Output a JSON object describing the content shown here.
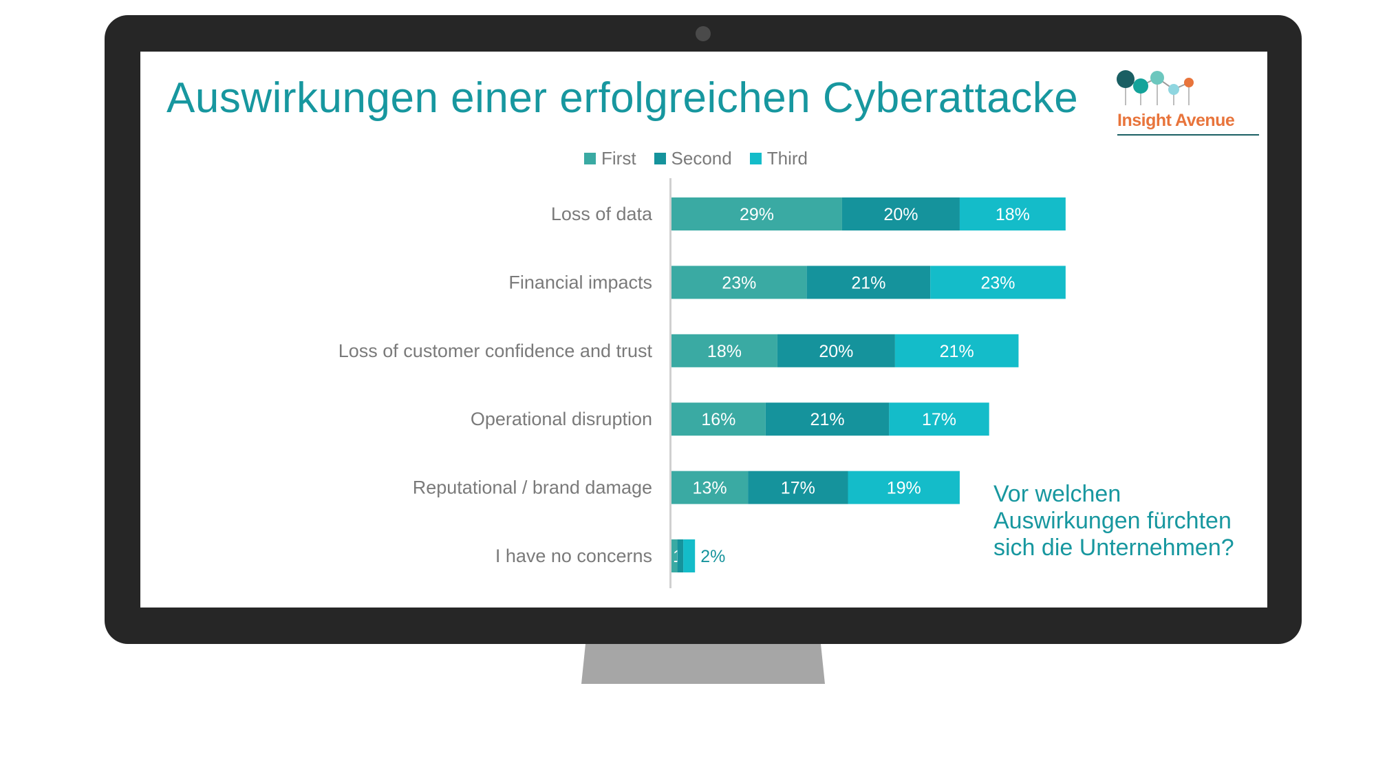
{
  "slide": {
    "title": "Auswirkungen einer erfolgreichen Cyberattacke",
    "question": "Vor welchen Auswirkungen fürchten sich die Unternehmen?",
    "logo_text": "Insight Avenue"
  },
  "colors": {
    "first": "#3aaaa3",
    "second": "#15939c",
    "third": "#14bcc9",
    "title": "#17979f",
    "label_text": "#7a7a7a",
    "logo_orange": "#e8743b",
    "logo_dark": "#1a5f63"
  },
  "chart_data": {
    "type": "bar",
    "orientation": "horizontal",
    "stacked": true,
    "legend_position": "top",
    "grid": false,
    "categories": [
      "Loss of data",
      "Financial impacts",
      "Loss of customer confidence and trust",
      "Operational disruption",
      "Reputational / brand damage",
      "I have no concerns"
    ],
    "series": [
      {
        "name": "First",
        "values": [
          29,
          23,
          18,
          16,
          13,
          1
        ]
      },
      {
        "name": "Second",
        "values": [
          20,
          21,
          20,
          21,
          17,
          1
        ]
      },
      {
        "name": "Third",
        "values": [
          18,
          23,
          21,
          17,
          19,
          2
        ]
      }
    ],
    "data_labels": [
      [
        "29%",
        "20%",
        "18%"
      ],
      [
        "23%",
        "21%",
        "23%"
      ],
      [
        "18%",
        "20%",
        "21%"
      ],
      [
        "16%",
        "21%",
        "17%"
      ],
      [
        "13%",
        "17%",
        "19%"
      ],
      [
        "1%",
        "",
        "2%"
      ]
    ]
  }
}
